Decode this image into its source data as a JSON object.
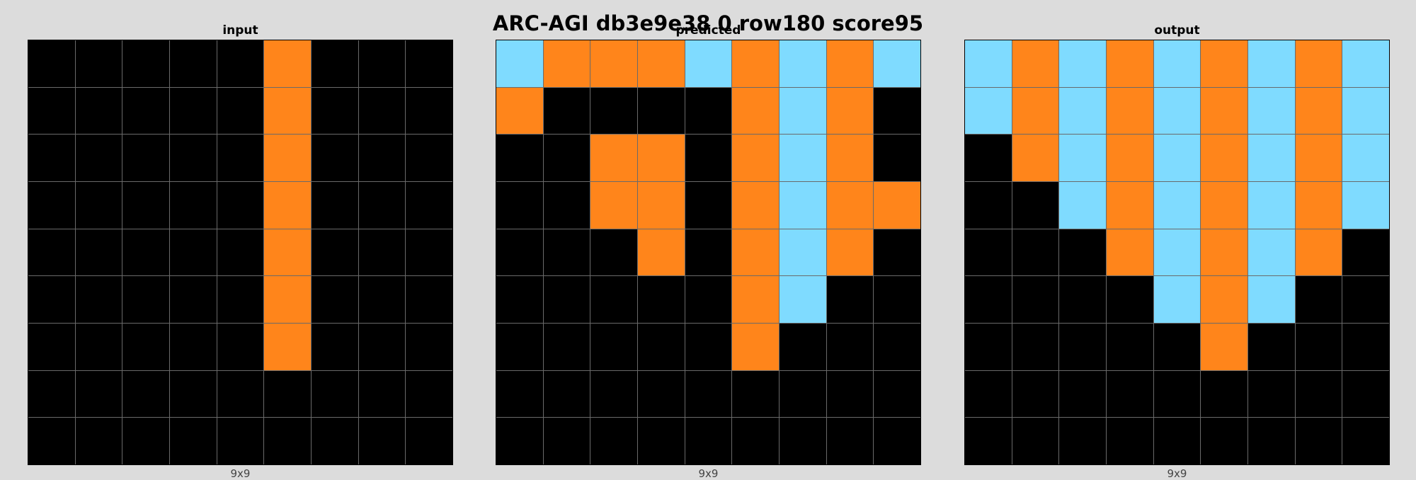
{
  "title": "ARC-AGI db3e9e38 0 row180 score95",
  "palette": {
    "0": "#000000",
    "7": "#ff851b",
    "8": "#7fdbff"
  },
  "panels": [
    {
      "label": "input",
      "dims": "9x9",
      "grid": [
        [
          0,
          0,
          0,
          0,
          0,
          7,
          0,
          0,
          0
        ],
        [
          0,
          0,
          0,
          0,
          0,
          7,
          0,
          0,
          0
        ],
        [
          0,
          0,
          0,
          0,
          0,
          7,
          0,
          0,
          0
        ],
        [
          0,
          0,
          0,
          0,
          0,
          7,
          0,
          0,
          0
        ],
        [
          0,
          0,
          0,
          0,
          0,
          7,
          0,
          0,
          0
        ],
        [
          0,
          0,
          0,
          0,
          0,
          7,
          0,
          0,
          0
        ],
        [
          0,
          0,
          0,
          0,
          0,
          7,
          0,
          0,
          0
        ],
        [
          0,
          0,
          0,
          0,
          0,
          0,
          0,
          0,
          0
        ],
        [
          0,
          0,
          0,
          0,
          0,
          0,
          0,
          0,
          0
        ]
      ]
    },
    {
      "label": "predicted",
      "dims": "9x9",
      "grid": [
        [
          8,
          7,
          7,
          7,
          8,
          7,
          8,
          7,
          8
        ],
        [
          7,
          0,
          0,
          0,
          0,
          7,
          8,
          7,
          0
        ],
        [
          0,
          0,
          7,
          7,
          0,
          7,
          8,
          7,
          0
        ],
        [
          0,
          0,
          7,
          7,
          0,
          7,
          8,
          7,
          7
        ],
        [
          0,
          0,
          0,
          7,
          0,
          7,
          8,
          7,
          0
        ],
        [
          0,
          0,
          0,
          0,
          0,
          7,
          8,
          0,
          0
        ],
        [
          0,
          0,
          0,
          0,
          0,
          7,
          0,
          0,
          0
        ],
        [
          0,
          0,
          0,
          0,
          0,
          0,
          0,
          0,
          0
        ],
        [
          0,
          0,
          0,
          0,
          0,
          0,
          0,
          0,
          0
        ]
      ]
    },
    {
      "label": "output",
      "dims": "9x9",
      "grid": [
        [
          8,
          7,
          8,
          7,
          8,
          7,
          8,
          7,
          8
        ],
        [
          8,
          7,
          8,
          7,
          8,
          7,
          8,
          7,
          8
        ],
        [
          0,
          7,
          8,
          7,
          8,
          7,
          8,
          7,
          8
        ],
        [
          0,
          0,
          8,
          7,
          8,
          7,
          8,
          7,
          8
        ],
        [
          0,
          0,
          0,
          7,
          8,
          7,
          8,
          7,
          0
        ],
        [
          0,
          0,
          0,
          0,
          8,
          7,
          8,
          0,
          0
        ],
        [
          0,
          0,
          0,
          0,
          0,
          7,
          0,
          0,
          0
        ],
        [
          0,
          0,
          0,
          0,
          0,
          0,
          0,
          0,
          0
        ],
        [
          0,
          0,
          0,
          0,
          0,
          0,
          0,
          0,
          0
        ]
      ]
    }
  ]
}
